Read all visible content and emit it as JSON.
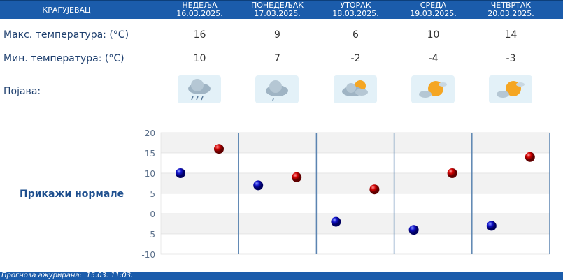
{
  "header": {
    "city": "КРАГУЈЕВАЦ",
    "days": [
      {
        "name": "НЕДЕЉА",
        "date": "16.03.2025."
      },
      {
        "name": "ПОНЕДЕЉАК",
        "date": "17.03.2025."
      },
      {
        "name": "УТОРАК",
        "date": "18.03.2025."
      },
      {
        "name": "СРЕДА",
        "date": "19.03.2025."
      },
      {
        "name": "ЧЕТВРТАК",
        "date": "20.03.2025."
      }
    ]
  },
  "rows": {
    "max_label": "Макс. температура: (°C)",
    "min_label": "Мин. температура: (°C)",
    "phenomenon_label": "Појава:",
    "max": [
      "16",
      "9",
      "6",
      "10",
      "14"
    ],
    "min": [
      "10",
      "7",
      "-2",
      "-4",
      "-3"
    ],
    "icons": [
      "rain-cloud-icon",
      "cloud-icon",
      "partly-cloudy-icon",
      "sun-cloud-icon",
      "sun-cloud-icon"
    ]
  },
  "show_normals": "Прикажи нормале",
  "footer": "Прогноза ажурирана:  15.03. 11:03.",
  "chart_data": {
    "type": "scatter",
    "categories": [
      "16.03.2025.",
      "17.03.2025.",
      "18.03.2025.",
      "19.03.2025.",
      "20.03.2025."
    ],
    "series": [
      {
        "color": "#0a0ad0",
        "values": [
          10,
          7,
          -2,
          -4,
          -3
        ]
      },
      {
        "color": "#d00a0a",
        "values": [
          16,
          9,
          6,
          10,
          14
        ]
      }
    ],
    "ylim": [
      -10,
      20
    ],
    "yticks": [
      "20",
      "15",
      "10",
      "5",
      "0",
      "-5",
      "-10"
    ],
    "grid": true
  }
}
